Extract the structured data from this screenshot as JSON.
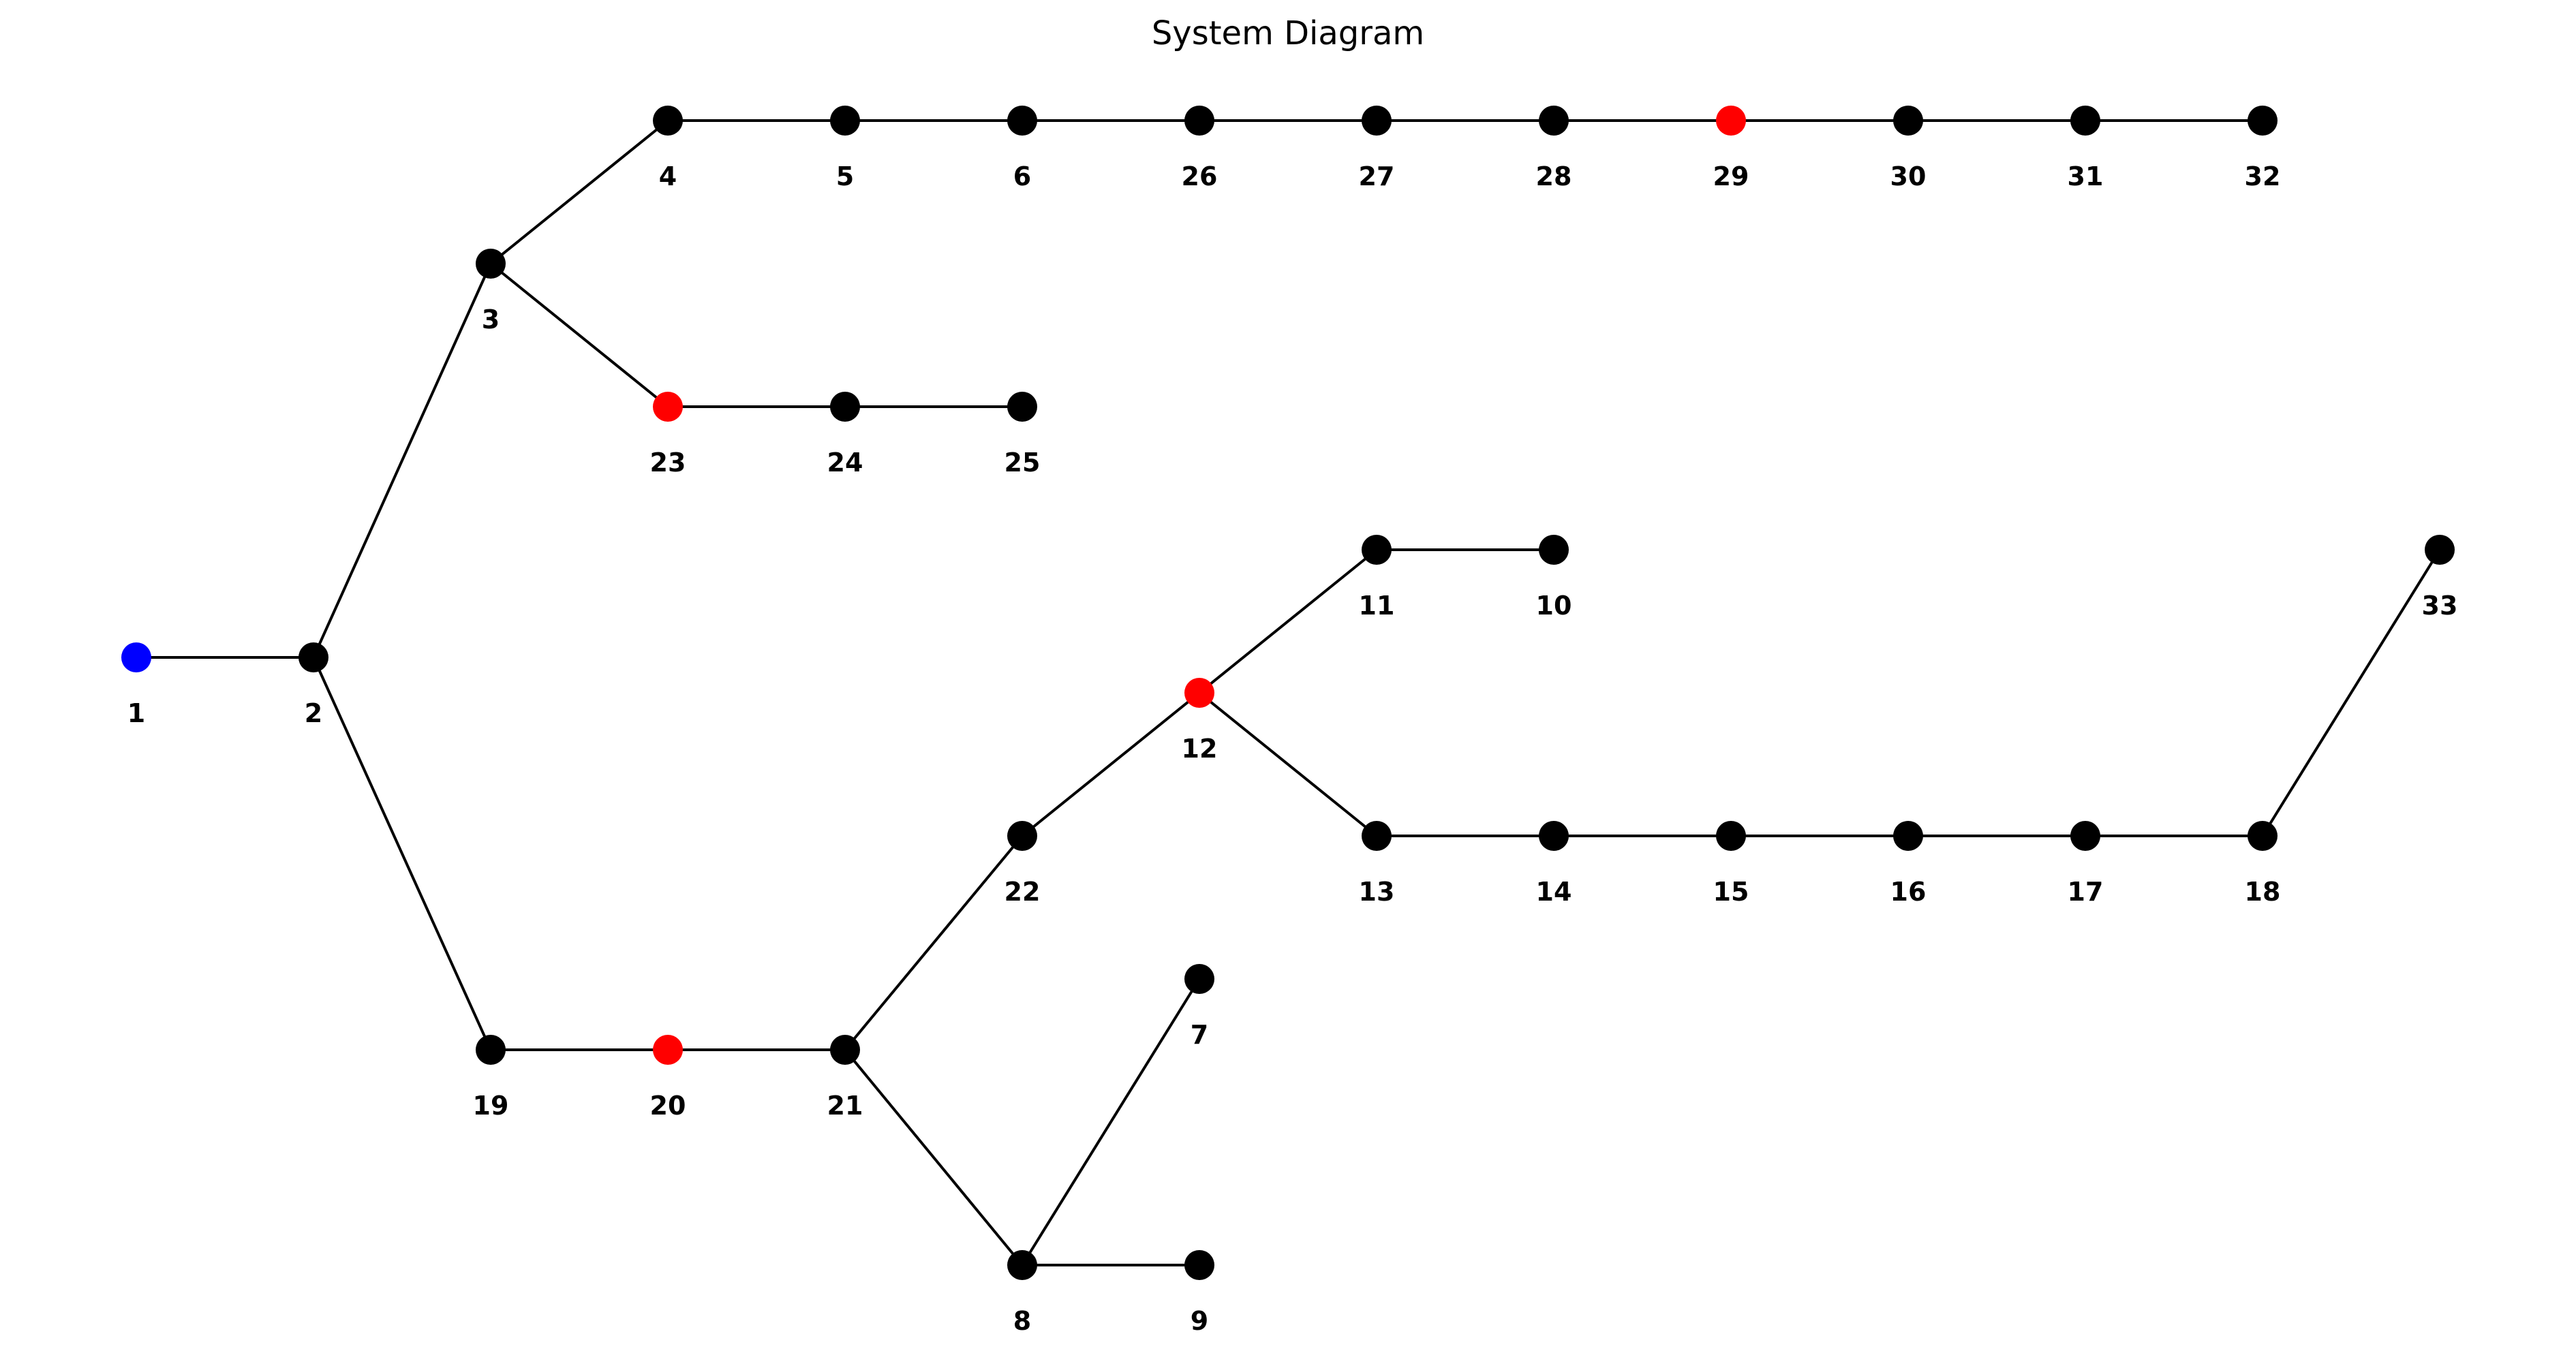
{
  "title": "System Diagram",
  "colors": {
    "default": "#000000",
    "source": "#0000ff",
    "highlight": "#ff0000",
    "edge": "#000000"
  },
  "nodes": [
    {
      "id": "1",
      "type": "source"
    },
    {
      "id": "2",
      "type": "default"
    },
    {
      "id": "3",
      "type": "default"
    },
    {
      "id": "4",
      "type": "default"
    },
    {
      "id": "5",
      "type": "default"
    },
    {
      "id": "6",
      "type": "default"
    },
    {
      "id": "26",
      "type": "default"
    },
    {
      "id": "27",
      "type": "default"
    },
    {
      "id": "28",
      "type": "default"
    },
    {
      "id": "29",
      "type": "highlight"
    },
    {
      "id": "30",
      "type": "default"
    },
    {
      "id": "31",
      "type": "default"
    },
    {
      "id": "32",
      "type": "default"
    },
    {
      "id": "23",
      "type": "highlight"
    },
    {
      "id": "24",
      "type": "default"
    },
    {
      "id": "25",
      "type": "default"
    },
    {
      "id": "11",
      "type": "default"
    },
    {
      "id": "10",
      "type": "default"
    },
    {
      "id": "33",
      "type": "default"
    },
    {
      "id": "12",
      "type": "highlight"
    },
    {
      "id": "22",
      "type": "default"
    },
    {
      "id": "13",
      "type": "default"
    },
    {
      "id": "14",
      "type": "default"
    },
    {
      "id": "15",
      "type": "default"
    },
    {
      "id": "16",
      "type": "default"
    },
    {
      "id": "17",
      "type": "default"
    },
    {
      "id": "18",
      "type": "default"
    },
    {
      "id": "19",
      "type": "default"
    },
    {
      "id": "20",
      "type": "highlight"
    },
    {
      "id": "21",
      "type": "default"
    },
    {
      "id": "7",
      "type": "default"
    },
    {
      "id": "8",
      "type": "default"
    },
    {
      "id": "9",
      "type": "default"
    }
  ],
  "edges": [
    [
      "1",
      "2"
    ],
    [
      "2",
      "3"
    ],
    [
      "2",
      "19"
    ],
    [
      "3",
      "4"
    ],
    [
      "3",
      "23"
    ],
    [
      "4",
      "5"
    ],
    [
      "5",
      "6"
    ],
    [
      "6",
      "26"
    ],
    [
      "26",
      "27"
    ],
    [
      "27",
      "28"
    ],
    [
      "28",
      "29"
    ],
    [
      "29",
      "30"
    ],
    [
      "30",
      "31"
    ],
    [
      "31",
      "32"
    ],
    [
      "23",
      "24"
    ],
    [
      "24",
      "25"
    ],
    [
      "19",
      "20"
    ],
    [
      "20",
      "21"
    ],
    [
      "21",
      "22"
    ],
    [
      "21",
      "8"
    ],
    [
      "8",
      "7"
    ],
    [
      "8",
      "9"
    ],
    [
      "22",
      "12"
    ],
    [
      "12",
      "11"
    ],
    [
      "11",
      "10"
    ],
    [
      "12",
      "13"
    ],
    [
      "13",
      "14"
    ],
    [
      "14",
      "15"
    ],
    [
      "15",
      "16"
    ],
    [
      "16",
      "17"
    ],
    [
      "17",
      "18"
    ],
    [
      "18",
      "33"
    ]
  ]
}
